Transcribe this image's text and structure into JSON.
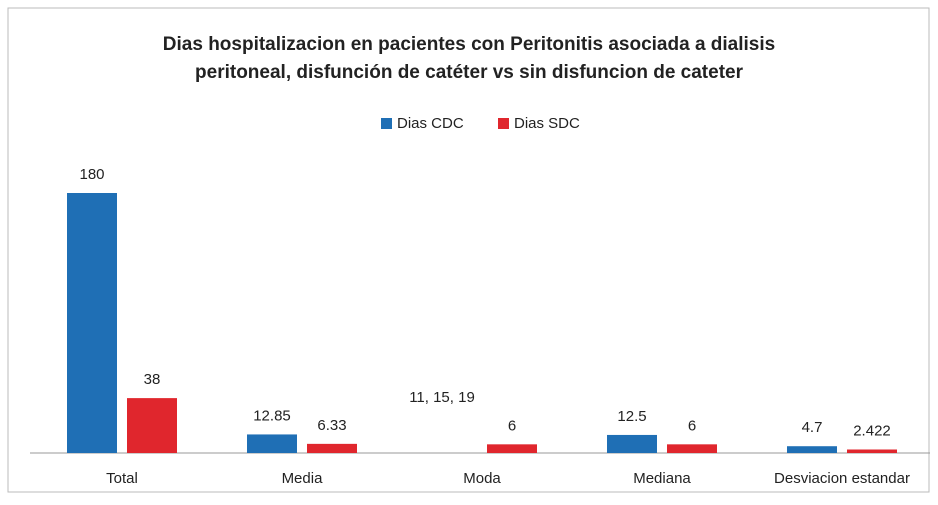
{
  "chart_data": {
    "type": "bar",
    "title": "Dias hospitalizacion en pacientes con Peritonitis asociada a dialisis",
    "subtitle": "peritoneal, disfunción de catéter vs sin disfuncion de cateter",
    "categories": [
      "Total",
      "Media",
      "Moda",
      "Mediana",
      "Desviacion estandar"
    ],
    "series": [
      {
        "name": "Dias CDC",
        "color": "#1f6fb5",
        "values": [
          180,
          12.85,
          null,
          12.5,
          4.7
        ],
        "value_labels": [
          "180",
          "12.85",
          "11, 15, 19",
          "12.5",
          "4.7"
        ]
      },
      {
        "name": "Dias SDC",
        "color": "#e0262d",
        "values": [
          38,
          6.33,
          6,
          6,
          2.422
        ]
      }
    ],
    "legend": "top"
  }
}
